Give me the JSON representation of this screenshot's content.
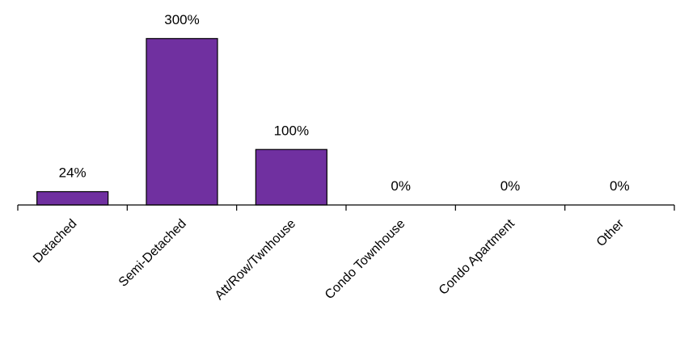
{
  "chart_data": {
    "type": "bar",
    "categories": [
      "Detached",
      "Semi-Detached",
      "Att/Row/Twnhouse",
      "Condo Townhouse",
      "Condo Apartment",
      "Other"
    ],
    "values": [
      24,
      300,
      100,
      0,
      0,
      0
    ],
    "data_labels": [
      "24%",
      "300%",
      "100%",
      "0%",
      "0%",
      "0%"
    ],
    "ylim": [
      0,
      320
    ],
    "grid": false,
    "legend": "none",
    "colors": {
      "bar_fill": "#7030A0",
      "bar_stroke": "#000000",
      "axis": "#000000"
    }
  }
}
